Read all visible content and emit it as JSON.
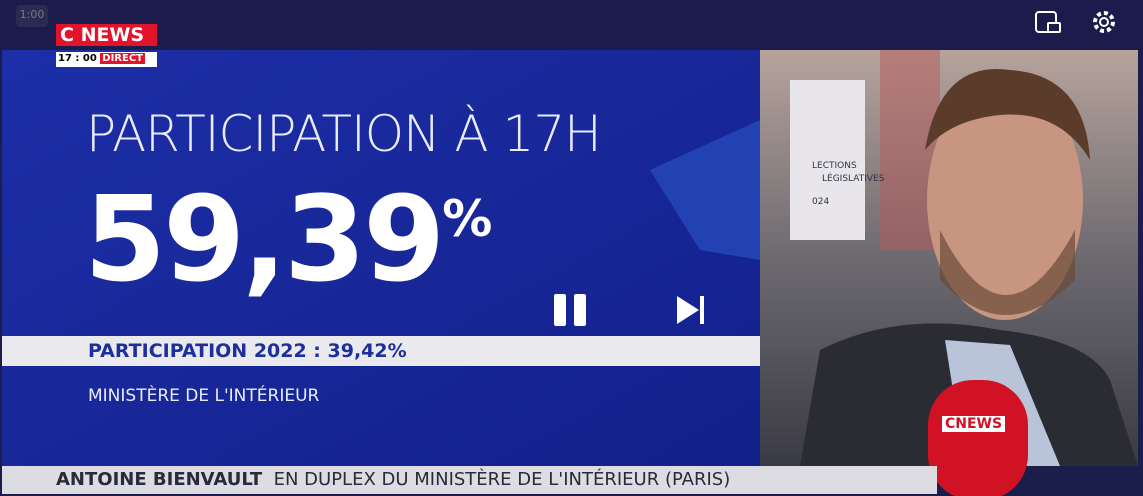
{
  "player": {
    "speed": "1:00"
  },
  "logo": {
    "c": "C",
    "news": "NEWS",
    "time": "17 : 00",
    "live": "DIRECT"
  },
  "graphic": {
    "headline": "PARTICIPATION À 17H",
    "value": "59,39",
    "unit": "%",
    "comparison": "PARTICIPATION 2022 : 39,42%",
    "source": "MINISTÈRE DE L'INTÉRIEUR"
  },
  "background_screen": {
    "line1": "LECTIONS",
    "line2": "LÉGISLATIVES",
    "line3": "024"
  },
  "microphone": {
    "label": "CNEWS"
  },
  "lower_third": {
    "name": "ANTOINE BIENVAULT",
    "caption": "EN DUPLEX DU MINISTÈRE DE L'INTÉRIEUR (PARIS)"
  }
}
